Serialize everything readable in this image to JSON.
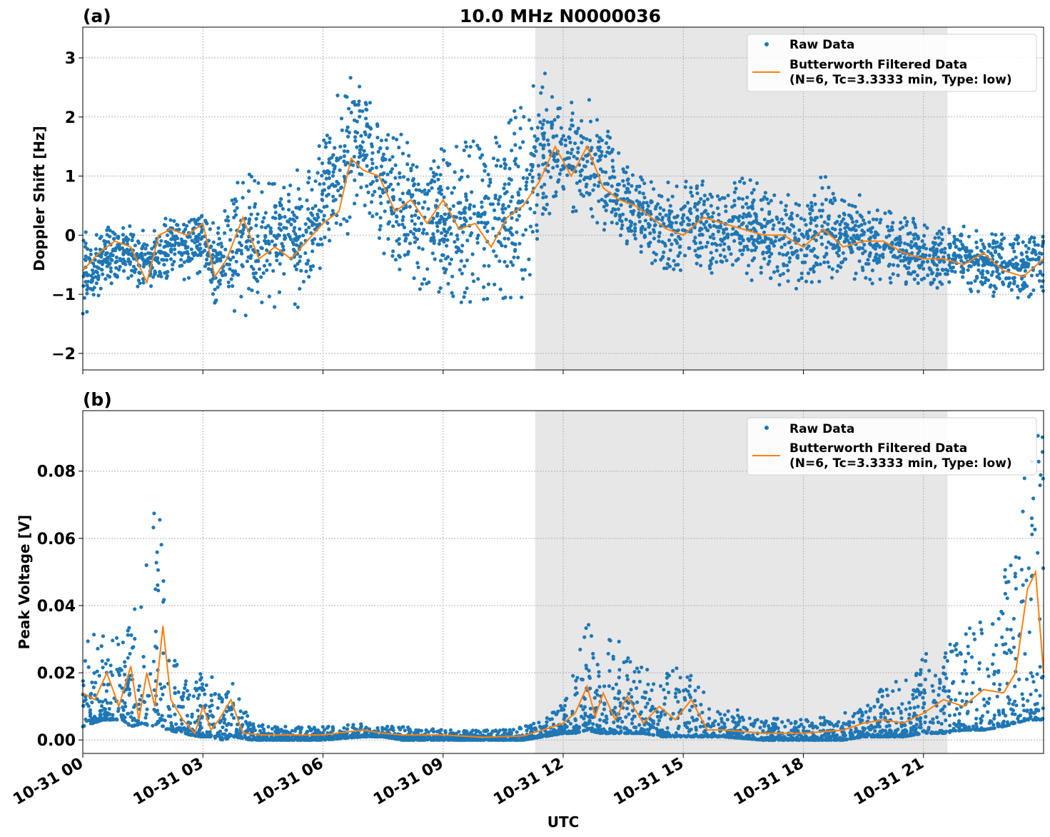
{
  "figure": {
    "title": "10.0 MHz N0000036",
    "xlabel": "UTC",
    "x_tick_labels": [
      "10-31 00",
      "10-31 03",
      "10-31 06",
      "10-31 09",
      "10-31 12",
      "10-31 15",
      "10-31 18",
      "10-31 21"
    ],
    "shaded_span_hours": [
      11.3,
      21.6
    ],
    "colors": {
      "raw": "#1f77b4",
      "filtered": "#ff7f0e",
      "shade": "#e7e7e7",
      "grid": "#b0b0b0"
    }
  },
  "chart_data": [
    {
      "type": "scatter",
      "panel_label": "(a)",
      "ylabel": "Doppler Shift [Hz]",
      "xlim_hours": [
        0,
        24
      ],
      "ylim": [
        -2.28,
        3.52
      ],
      "y_ticks": [
        -2,
        -1,
        0,
        1,
        2,
        3
      ],
      "y_tick_labels": [
        "−2",
        "−1",
        "0",
        "1",
        "2",
        "3"
      ],
      "grid": true,
      "legend_position": "top-right",
      "legend": [
        "Raw Data",
        "Butterworth Filtered Data\n(N=6, Tc=3.3333 min, Type: low)"
      ],
      "series": [
        {
          "name": "Raw Data",
          "x_hours": [
            0,
            0.5,
            1.0,
            1.5,
            1.8,
            2.2,
            2.6,
            3.0,
            3.3,
            3.8,
            4.2,
            4.6,
            5.0,
            5.4,
            5.8,
            6.2,
            6.6,
            7.0,
            7.5,
            8.0,
            8.5,
            9.0,
            9.5,
            10.0,
            10.5,
            11.0,
            11.3,
            11.7,
            12.0,
            12.5,
            13.0,
            13.5,
            14.0,
            14.5,
            15.0,
            15.5,
            16.0,
            16.5,
            17.0,
            17.5,
            18.0,
            18.5,
            19.0,
            19.5,
            20.0,
            20.5,
            21.0,
            21.5,
            22.0,
            22.5,
            23.0,
            23.5,
            24.0
          ],
          "y_min": [
            -1.6,
            -1.0,
            -0.8,
            -1.0,
            -1.1,
            -0.7,
            -0.8,
            -0.9,
            -1.3,
            -1.6,
            -1.4,
            -1.2,
            -1.4,
            -1.3,
            -0.9,
            -0.3,
            -0.2,
            0.2,
            -0.7,
            -1.0,
            -1.2,
            -1.1,
            -1.3,
            -1.4,
            -1.5,
            -1.3,
            -0.4,
            0.2,
            0.3,
            0.3,
            0.0,
            -0.2,
            -0.4,
            -0.6,
            -0.7,
            -0.7,
            -0.8,
            -0.9,
            -1.0,
            -1.0,
            -1.0,
            -0.9,
            -0.9,
            -0.9,
            -0.9,
            -1.0,
            -1.0,
            -0.9,
            -0.9,
            -1.1,
            -1.1,
            -1.3,
            -1.0
          ],
          "y_max": [
            0.2,
            0.2,
            0.35,
            0.1,
            0.3,
            0.4,
            0.5,
            0.6,
            0.2,
            0.95,
            1.3,
            1.2,
            1.3,
            1.2,
            1.5,
            2.0,
            3.25,
            2.4,
            2.6,
            1.9,
            1.6,
            1.7,
            1.9,
            2.1,
            2.2,
            2.4,
            2.95,
            2.7,
            2.5,
            2.5,
            2.1,
            1.3,
            1.2,
            0.9,
            1.1,
            1.0,
            0.9,
            1.2,
            0.9,
            0.8,
            0.8,
            1.2,
            0.9,
            0.7,
            0.5,
            0.5,
            0.3,
            0.2,
            0.2,
            0.2,
            0.1,
            0.2,
            0.1
          ]
        },
        {
          "name": "Butterworth Filtered Data\n(N=6, Tc=3.3333 min, Type: low)",
          "x_hours": [
            0,
            0.4,
            0.8,
            1.2,
            1.6,
            1.9,
            2.2,
            2.6,
            3.0,
            3.3,
            3.6,
            4.0,
            4.4,
            4.8,
            5.2,
            5.6,
            6.0,
            6.4,
            6.7,
            7.0,
            7.4,
            7.8,
            8.2,
            8.6,
            9.0,
            9.4,
            9.8,
            10.2,
            10.6,
            11.0,
            11.4,
            11.8,
            12.2,
            12.6,
            13.0,
            13.4,
            13.8,
            14.2,
            14.6,
            15.0,
            15.5,
            16.0,
            16.5,
            17.0,
            17.5,
            18.0,
            18.5,
            19.0,
            19.5,
            20.0,
            20.5,
            21.0,
            21.5,
            22.0,
            22.5,
            23.0,
            23.5,
            24.0
          ],
          "values": [
            -0.6,
            -0.3,
            -0.1,
            -0.2,
            -0.8,
            0.0,
            0.1,
            0.0,
            0.2,
            -0.7,
            -0.4,
            0.3,
            -0.4,
            -0.2,
            -0.4,
            -0.1,
            0.2,
            0.4,
            1.3,
            1.1,
            1.0,
            0.4,
            0.6,
            0.2,
            0.6,
            0.1,
            0.2,
            -0.2,
            0.3,
            0.5,
            0.9,
            1.5,
            1.0,
            1.5,
            0.8,
            0.6,
            0.5,
            0.3,
            0.1,
            0.0,
            0.3,
            0.2,
            0.1,
            0.0,
            0.0,
            -0.2,
            0.1,
            -0.2,
            -0.1,
            -0.1,
            -0.3,
            -0.4,
            -0.4,
            -0.5,
            -0.3,
            -0.6,
            -0.7,
            -0.4
          ]
        }
      ]
    },
    {
      "type": "scatter",
      "panel_label": "(b)",
      "ylabel": "Peak Voltage [V]",
      "xlim_hours": [
        0,
        24
      ],
      "ylim": [
        -0.004,
        0.098
      ],
      "y_ticks": [
        0.0,
        0.02,
        0.04,
        0.06,
        0.08
      ],
      "y_tick_labels": [
        "0.00",
        "0.02",
        "0.04",
        "0.06",
        "0.08"
      ],
      "grid": true,
      "legend_position": "top-right",
      "legend": [
        "Raw Data",
        "Butterworth Filtered Data\n(N=6, Tc=3.3333 min, Type: low)"
      ],
      "series": [
        {
          "name": "Raw Data",
          "x_hours": [
            0,
            0.5,
            1.0,
            1.2,
            1.5,
            1.7,
            1.9,
            2.1,
            2.5,
            2.9,
            3.2,
            3.5,
            3.8,
            4.2,
            5.0,
            6.0,
            7.0,
            7.5,
            8.0,
            9.0,
            10.0,
            11.0,
            11.5,
            12.0,
            12.3,
            12.6,
            12.9,
            13.2,
            13.6,
            14.0,
            14.5,
            15.0,
            15.5,
            16.0,
            17.0,
            18.0,
            19.0,
            19.5,
            20.0,
            20.5,
            21.0,
            21.5,
            22.0,
            22.5,
            23.0,
            23.3,
            23.6,
            24.0
          ],
          "y_min": [
            0.004,
            0.006,
            0.006,
            0.004,
            0.005,
            0.004,
            0.005,
            0.003,
            0.002,
            0.001,
            0.001,
            0.0,
            0.001,
            0.0,
            0.0,
            0.0,
            0.001,
            0.001,
            0.0,
            0.0,
            0.0,
            0.0,
            0.001,
            0.002,
            0.002,
            0.003,
            0.002,
            0.002,
            0.002,
            0.002,
            0.001,
            0.001,
            0.001,
            0.001,
            0.0,
            0.0,
            0.0,
            0.001,
            0.001,
            0.001,
            0.002,
            0.002,
            0.003,
            0.003,
            0.004,
            0.005,
            0.006,
            0.006
          ],
          "y_max": [
            0.031,
            0.033,
            0.031,
            0.042,
            0.046,
            0.068,
            0.077,
            0.028,
            0.021,
            0.02,
            0.02,
            0.012,
            0.02,
            0.005,
            0.004,
            0.004,
            0.005,
            0.004,
            0.004,
            0.003,
            0.003,
            0.004,
            0.006,
            0.011,
            0.023,
            0.039,
            0.02,
            0.033,
            0.031,
            0.022,
            0.022,
            0.027,
            0.015,
            0.01,
            0.007,
            0.006,
            0.008,
            0.011,
            0.016,
            0.019,
            0.027,
            0.028,
            0.031,
            0.04,
            0.05,
            0.065,
            0.09,
            0.093
          ]
        },
        {
          "name": "Butterworth Filtered Data\n(N=6, Tc=3.3333 min, Type: low)",
          "x_hours": [
            0,
            0.3,
            0.6,
            0.9,
            1.2,
            1.4,
            1.6,
            1.8,
            2.0,
            2.2,
            2.5,
            2.8,
            3.0,
            3.2,
            3.4,
            3.7,
            4.0,
            4.5,
            5.0,
            6.0,
            7.0,
            7.5,
            8.0,
            9.0,
            10.0,
            11.0,
            11.5,
            12.0,
            12.3,
            12.6,
            12.8,
            13.0,
            13.3,
            13.6,
            14.0,
            14.4,
            14.8,
            15.2,
            15.6,
            16.0,
            17.0,
            18.0,
            19.0,
            19.5,
            20.0,
            20.5,
            21.0,
            21.5,
            22.0,
            22.5,
            23.0,
            23.3,
            23.6,
            23.8,
            24.0
          ],
          "values": [
            0.014,
            0.012,
            0.02,
            0.01,
            0.022,
            0.006,
            0.02,
            0.01,
            0.034,
            0.012,
            0.006,
            0.002,
            0.01,
            0.003,
            0.006,
            0.012,
            0.002,
            0.0015,
            0.0015,
            0.0015,
            0.003,
            0.002,
            0.0015,
            0.0015,
            0.0008,
            0.0012,
            0.003,
            0.005,
            0.008,
            0.016,
            0.007,
            0.014,
            0.006,
            0.013,
            0.005,
            0.01,
            0.006,
            0.012,
            0.003,
            0.003,
            0.002,
            0.002,
            0.003,
            0.005,
            0.006,
            0.005,
            0.008,
            0.012,
            0.01,
            0.015,
            0.014,
            0.02,
            0.045,
            0.05,
            0.02
          ]
        }
      ]
    }
  ]
}
